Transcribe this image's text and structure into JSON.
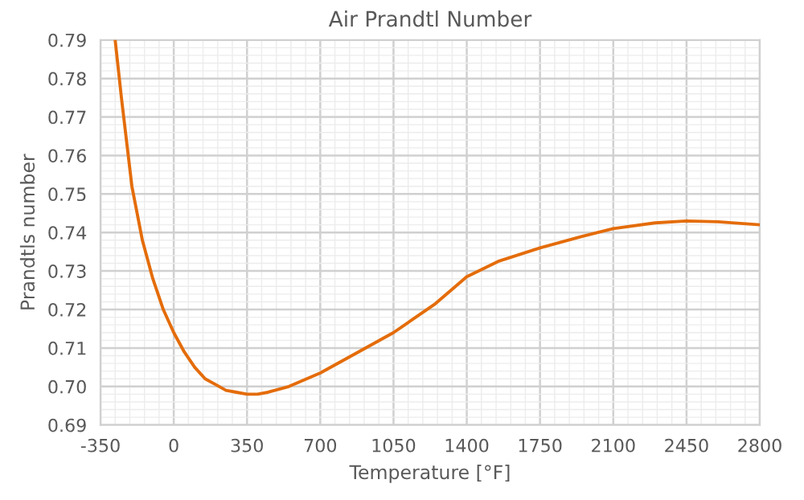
{
  "chart_data": {
    "type": "line",
    "title": "Air Prandtl Number",
    "xlabel": "Temperature [°F]",
    "ylabel": "Prandtls number",
    "series": [
      {
        "color": "#e46c0a",
        "x": [
          -280,
          -250,
          -200,
          -150,
          -100,
          -50,
          0,
          50,
          100,
          150,
          200,
          250,
          300,
          350,
          400,
          450,
          550,
          700,
          850,
          1050,
          1250,
          1400,
          1550,
          1750,
          1950,
          2100,
          2300,
          2450,
          2600,
          2800
        ],
        "values": [
          0.79,
          0.775,
          0.752,
          0.738,
          0.728,
          0.72,
          0.714,
          0.709,
          0.705,
          0.702,
          0.7005,
          0.699,
          0.6985,
          0.698,
          0.698,
          0.6985,
          0.7,
          0.7035,
          0.708,
          0.714,
          0.7215,
          0.7285,
          0.7325,
          0.736,
          0.739,
          0.741,
          0.7425,
          0.743,
          0.7428,
          0.742
        ]
      }
    ],
    "xlim": [
      -350,
      2800
    ],
    "xticks": [
      -350,
      0,
      350,
      700,
      1050,
      1400,
      1750,
      2100,
      2450,
      2800
    ],
    "ylim": [
      0.69,
      0.79
    ],
    "yticks": [
      0.69,
      {
        "value": 0.7,
        "label": "0.70"
      },
      0.71,
      0.72,
      0.73,
      0.74,
      0.75,
      0.76,
      0.77,
      0.78,
      0.79
    ],
    "grid": true,
    "marker": "none",
    "line_style": "solid",
    "legend": false
  }
}
